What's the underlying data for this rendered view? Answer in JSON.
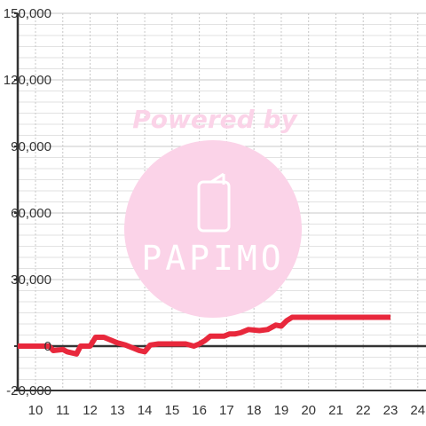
{
  "watermark": {
    "line1": "Powered by",
    "line2": "PAPIMO",
    "color": "#fbd3e8",
    "icon": "phone-icon"
  },
  "chart_data": {
    "type": "line",
    "title": "",
    "xlabel": "",
    "ylabel": "",
    "xlim": [
      9.35,
      24.3
    ],
    "ylim": [
      -20000,
      150000
    ],
    "x_ticks": [
      10,
      11,
      12,
      13,
      14,
      15,
      16,
      17,
      18,
      19,
      20,
      21,
      22,
      23,
      24
    ],
    "y_ticks": [
      -20000,
      0,
      30000,
      60000,
      90000,
      120000,
      150000
    ],
    "y_tick_labels": [
      "-20,000",
      "0",
      "30,000",
      "60,000",
      "90,000",
      "120,000",
      "150,000"
    ],
    "grid": true,
    "line_color": "#e8283c",
    "series": [
      {
        "x": [
          9.35,
          10.5,
          10.65,
          11.0,
          11.15,
          11.5,
          11.65,
          12.0,
          12.2,
          12.5,
          12.7,
          13.0,
          13.3,
          13.6,
          13.8,
          14.0,
          14.2,
          14.5,
          15.0,
          15.5,
          15.8,
          16.0,
          16.2,
          16.4,
          16.6,
          16.9,
          17.1,
          17.3,
          17.5,
          17.8,
          18.2,
          18.5,
          18.8,
          19.0,
          19.2,
          19.4,
          19.6,
          20.0,
          21.0,
          22.0,
          23.0
        ],
        "y": [
          0,
          0,
          -2000,
          -1500,
          -2500,
          -3500,
          0,
          0,
          4000,
          4000,
          3000,
          1500,
          500,
          -1000,
          -2000,
          -2500,
          500,
          1000,
          1000,
          1000,
          0,
          1000,
          2500,
          4500,
          4500,
          4500,
          5500,
          5500,
          6000,
          7500,
          7000,
          7500,
          9500,
          9000,
          11500,
          13000,
          13000,
          13000,
          13000,
          13000,
          13000
        ]
      }
    ]
  }
}
